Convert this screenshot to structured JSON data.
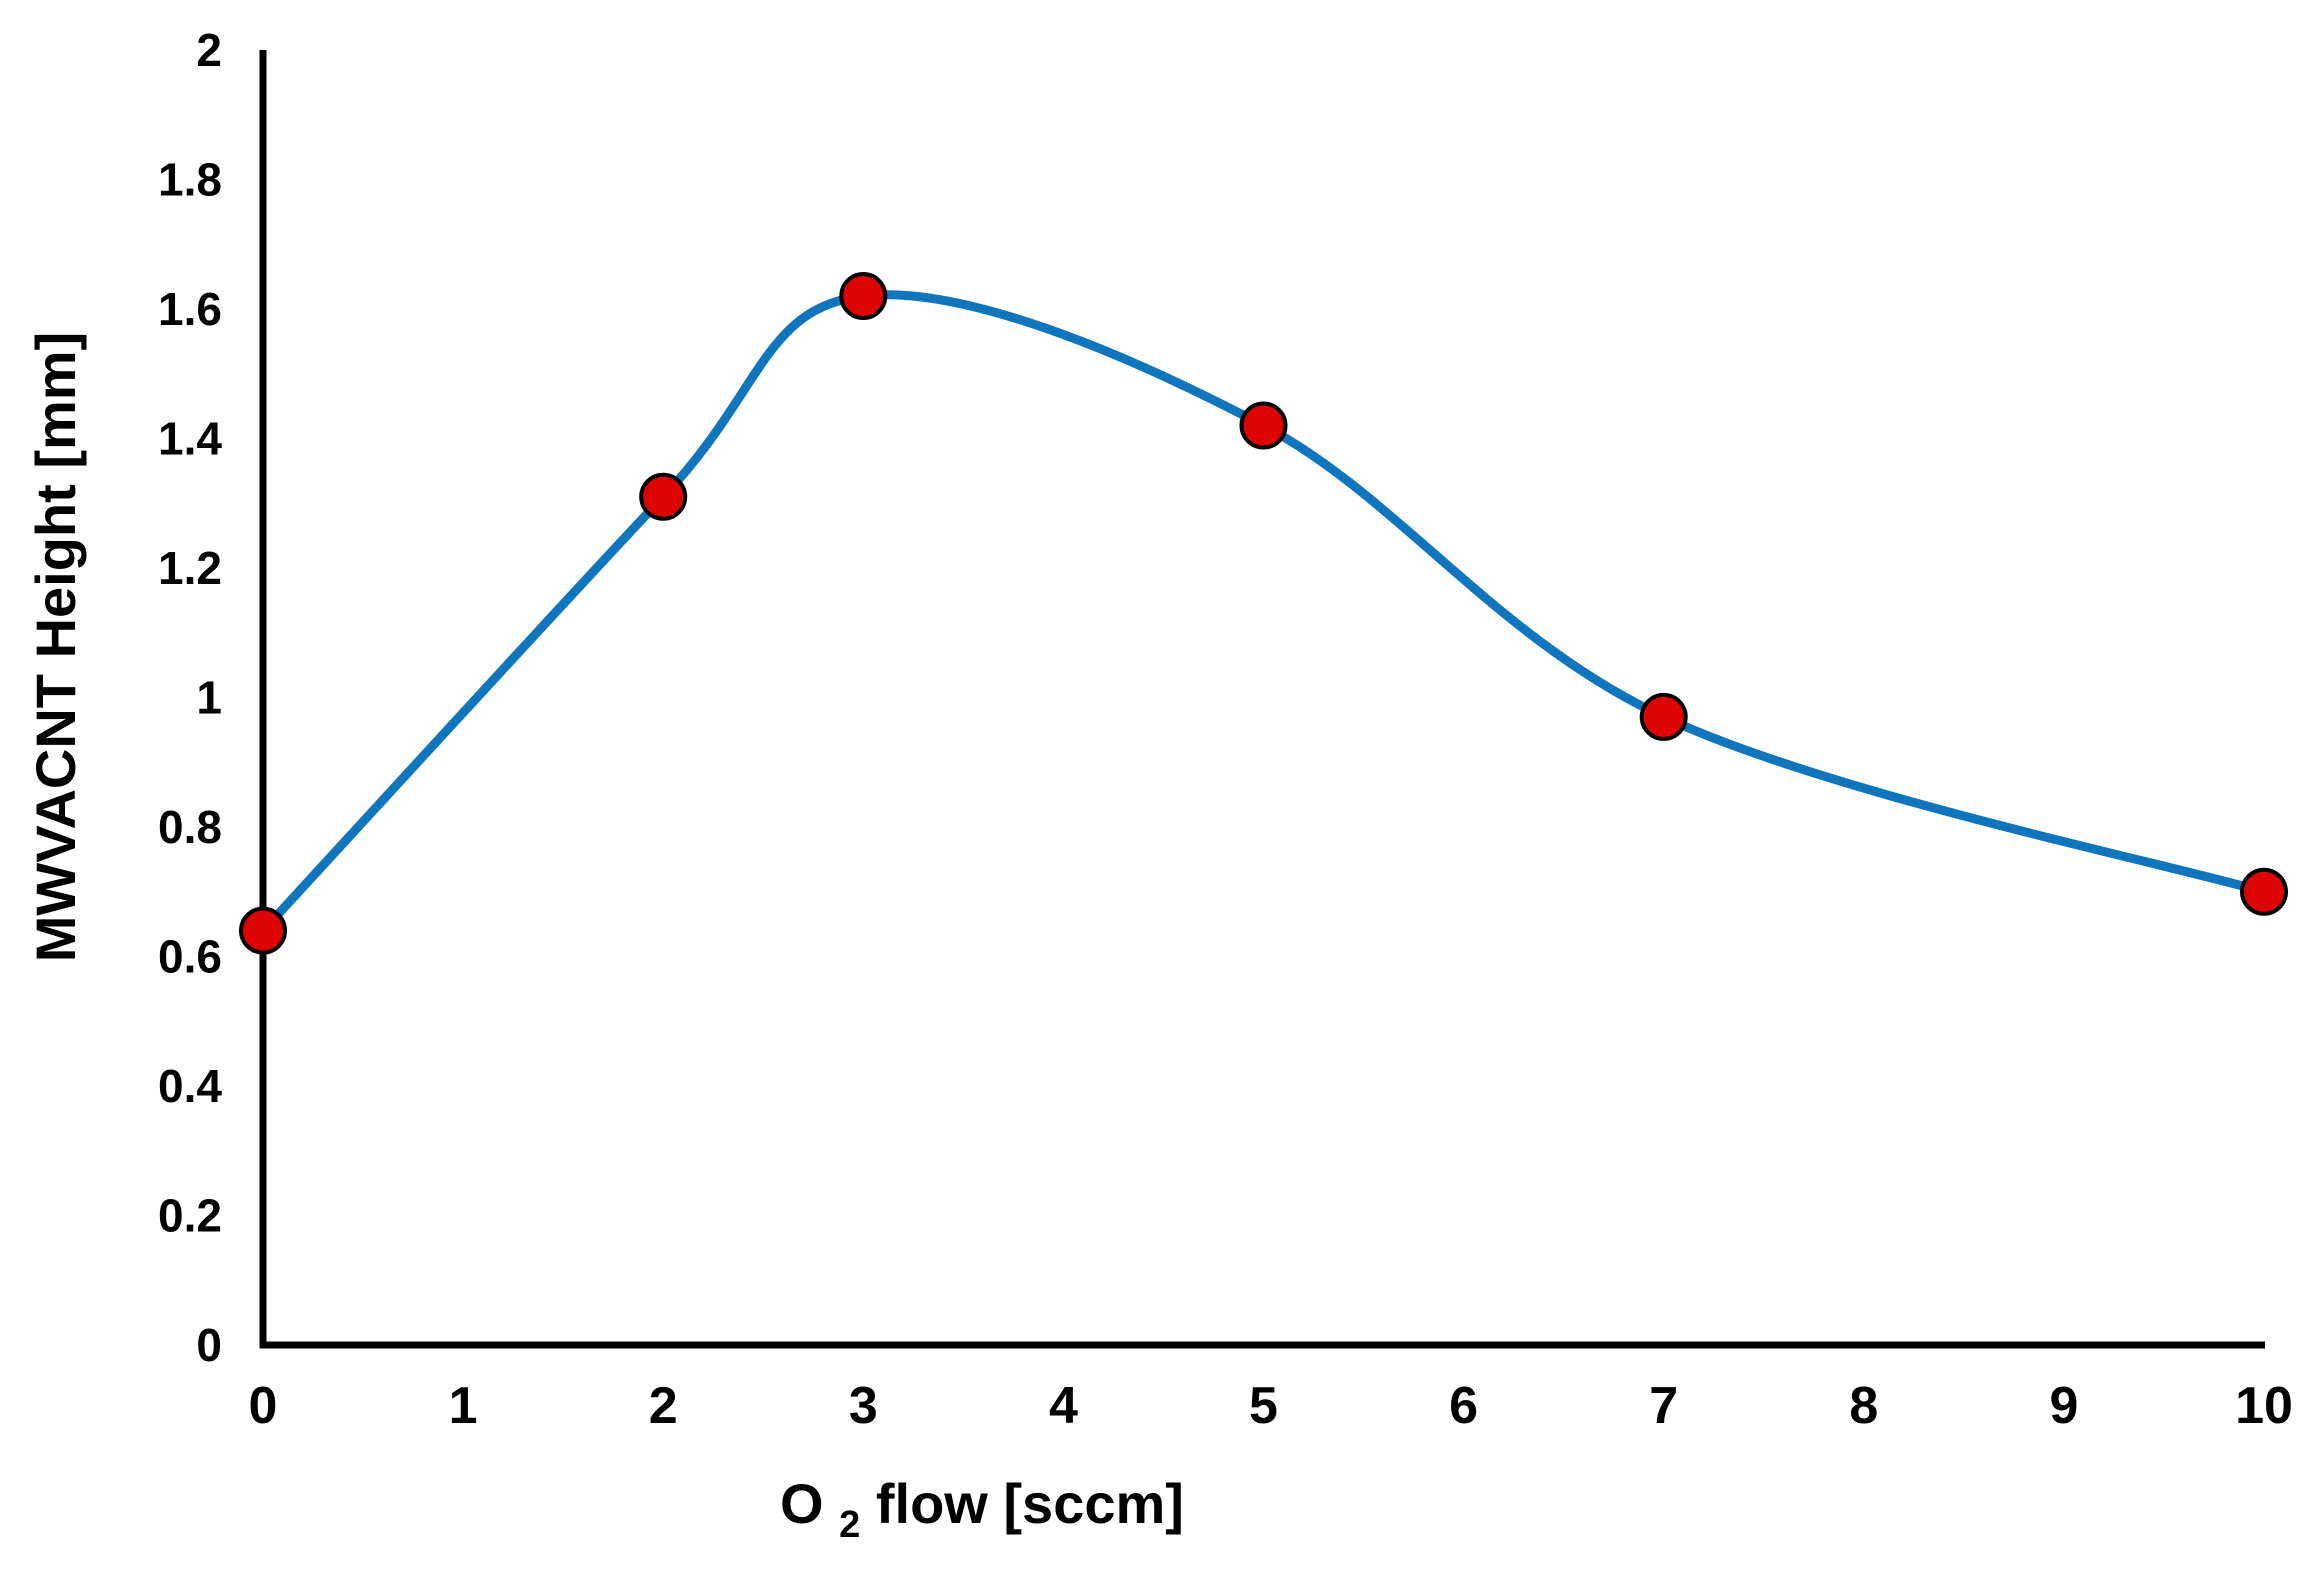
{
  "figure": {
    "background": "#ffffff",
    "description": "Smoothed scatter-line chart of MWVACNT height versus oxygen flow"
  },
  "chart_data": {
    "type": "line",
    "subtype": "smooth-scatter-line",
    "title": "",
    "xlabel": "O2 flow [sccm]",
    "xlabel_parts": {
      "main": "O",
      "sub": "2",
      "rest": " flow [sccm]"
    },
    "ylabel": "MWVACNT Height [mm]",
    "x": [
      0,
      2,
      3,
      5,
      7,
      10
    ],
    "y": [
      0.64,
      1.31,
      1.62,
      1.42,
      0.97,
      0.7
    ],
    "xlim": [
      0,
      10
    ],
    "ylim": [
      0,
      2
    ],
    "x_ticks": [
      0,
      1,
      2,
      3,
      4,
      5,
      6,
      7,
      8,
      9,
      10
    ],
    "x_tick_labels": [
      "0",
      "1",
      "2",
      "3",
      "4",
      "5",
      "6",
      "7",
      "8",
      "9",
      "10"
    ],
    "y_ticks": [
      0,
      0.2,
      0.4,
      0.6,
      0.8,
      1,
      1.2,
      1.4,
      1.6,
      1.8,
      2
    ],
    "y_tick_labels": [
      "0",
      "0.2",
      "0.4",
      "0.6",
      "0.8",
      "1",
      "1.2",
      "1.4",
      "1.6",
      "1.8",
      "2"
    ],
    "grid": false,
    "legend": "none",
    "series_name": "MWVACNT height",
    "line_color": "#0F76BE",
    "marker_color": "#DF0404",
    "marker_edge_color": "#000000",
    "axis_color": "#000000"
  }
}
